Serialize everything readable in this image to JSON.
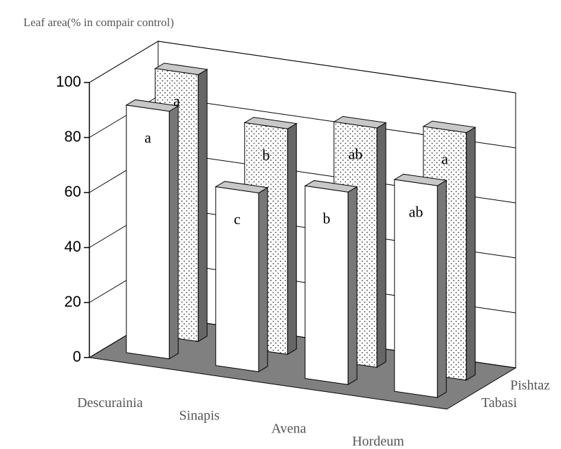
{
  "chart_data": {
    "type": "bar3d",
    "title": "Leaf area(% in compair control)",
    "categories": [
      "Descurainia",
      "Sinapis",
      "Avena",
      "Hordeum"
    ],
    "series": [
      {
        "name": "Tabasi",
        "color": "#ffffff",
        "values": [
          90,
          65,
          70,
          77
        ],
        "labels": [
          "a",
          "c",
          "b",
          "ab"
        ]
      },
      {
        "name": "Pishtaz",
        "color": "#ffffff",
        "pattern": "dots",
        "values": [
          97,
          82,
          87,
          90
        ],
        "labels": [
          "a",
          "b",
          "ab",
          "a"
        ]
      }
    ],
    "ylim": [
      0,
      100
    ],
    "yticks": [
      0,
      20,
      40,
      60,
      80,
      100
    ],
    "grid": true
  }
}
